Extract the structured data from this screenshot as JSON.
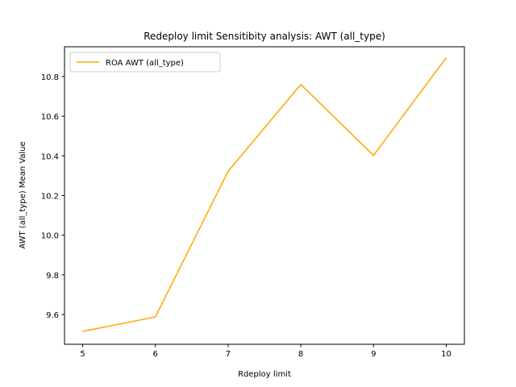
{
  "chart_data": {
    "type": "line",
    "title": "Redeploy limit Sensitibity analysis: AWT (all_type)",
    "xlabel": "Rdeploy limit",
    "ylabel": "AWT (all_type) Mean Value",
    "x": [
      5,
      6,
      7,
      8,
      9,
      10
    ],
    "xlim": [
      4.75,
      10.25
    ],
    "ylim": [
      9.45,
      10.95
    ],
    "xticks": [
      5,
      6,
      7,
      8,
      9,
      10
    ],
    "yticks": [
      9.6,
      9.8,
      10.0,
      10.2,
      10.4,
      10.6,
      10.8
    ],
    "xtick_labels": [
      "5",
      "6",
      "7",
      "8",
      "9",
      "10"
    ],
    "ytick_labels": [
      "9.6",
      "9.8",
      "10.0",
      "10.2",
      "10.4",
      "10.6",
      "10.8"
    ],
    "grid": false,
    "legend_position": "upper-left",
    "series": [
      {
        "name": "ROA AWT (all_type)",
        "color": "#ffa500",
        "values": [
          9.515,
          9.588,
          10.322,
          10.76,
          10.402,
          10.895
        ]
      }
    ]
  }
}
